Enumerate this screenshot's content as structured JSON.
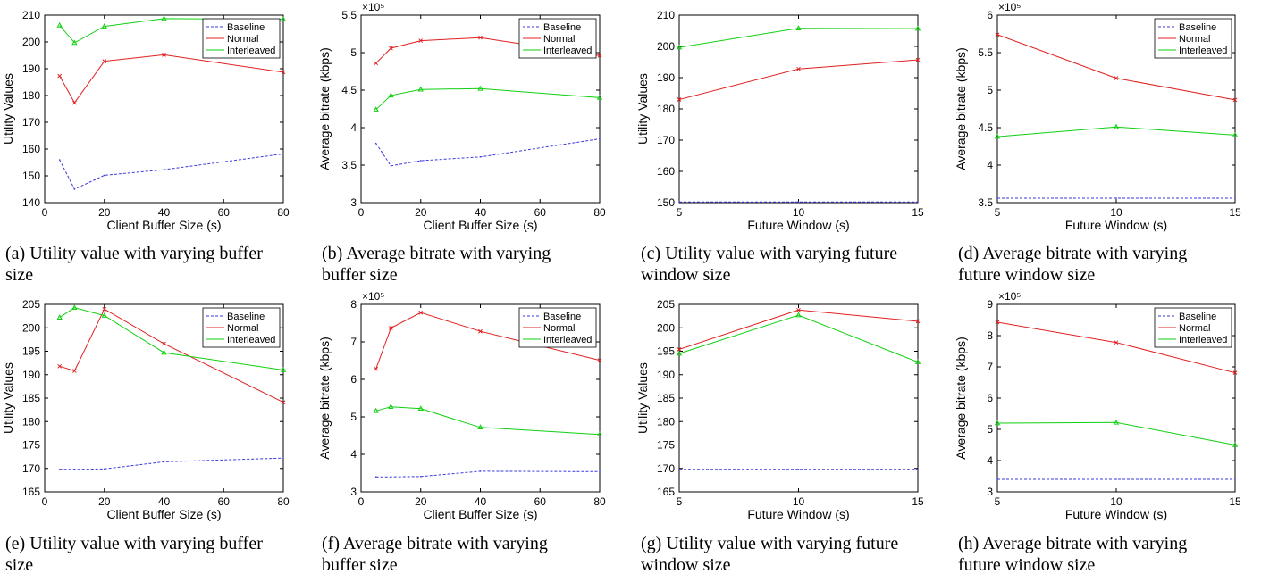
{
  "chart_data": [
    {
      "id": "a",
      "type": "line",
      "xlabel": "Client Buffer Size (s)",
      "ylabel": "Utility Values",
      "xlim": [
        0,
        80
      ],
      "ylim": [
        140,
        210
      ],
      "xticks": [
        0,
        20,
        40,
        60,
        80
      ],
      "yticks": [
        140,
        150,
        160,
        170,
        180,
        190,
        200,
        210
      ],
      "exponent": "",
      "x": [
        5,
        10,
        20,
        40,
        80
      ],
      "series": [
        {
          "name": "Baseline",
          "values": [
            156,
            145,
            150.2,
            152.3,
            158.2
          ]
        },
        {
          "name": "Normal",
          "values": [
            187.3,
            177.3,
            192.8,
            195.2,
            188.7
          ]
        },
        {
          "name": "Interleaved",
          "values": [
            206.2,
            199.7,
            205.8,
            208.7,
            208.4
          ]
        }
      ],
      "caption": [
        "(a) Utility value with varying buffer",
        "size"
      ],
      "legend_position": "top-right"
    },
    {
      "id": "b",
      "type": "line",
      "xlabel": "Client Buffer Size (s)",
      "ylabel": "Average bitrate (kbps)",
      "xlim": [
        0,
        80
      ],
      "ylim": [
        3,
        5.5
      ],
      "xticks": [
        0,
        20,
        40,
        60,
        80
      ],
      "yticks": [
        3,
        3.5,
        4,
        4.5,
        5,
        5.5
      ],
      "exponent": "×10⁵",
      "x": [
        5,
        10,
        20,
        40,
        80
      ],
      "series": [
        {
          "name": "Baseline",
          "values": [
            3.79,
            3.49,
            3.56,
            3.61,
            3.85
          ]
        },
        {
          "name": "Normal",
          "values": [
            4.86,
            5.06,
            5.16,
            5.2,
            4.96
          ]
        },
        {
          "name": "Interleaved",
          "values": [
            4.24,
            4.43,
            4.51,
            4.52,
            4.4
          ]
        }
      ],
      "caption": [
        "(b) Average bitrate with varying",
        "buffer size"
      ],
      "legend_position": "top-right"
    },
    {
      "id": "c",
      "type": "line",
      "xlabel": "Future Window (s)",
      "ylabel": "Utility Values",
      "xlim": [
        5,
        15
      ],
      "ylim": [
        150,
        210
      ],
      "xticks": [
        5,
        10,
        15
      ],
      "yticks": [
        150,
        160,
        170,
        180,
        190,
        200,
        210
      ],
      "exponent": "",
      "x": [
        5,
        10,
        15
      ],
      "series": [
        {
          "name": "Baseline",
          "values": [
            150.2,
            150.2,
            150.2
          ]
        },
        {
          "name": "Normal",
          "values": [
            183,
            192.8,
            195.7
          ]
        },
        {
          "name": "Interleaved",
          "values": [
            199.7,
            205.8,
            205.7
          ]
        }
      ],
      "caption": [
        "(c) Utility value with varying future",
        "window size"
      ],
      "legend_position": "none"
    },
    {
      "id": "d",
      "type": "line",
      "xlabel": "Future Window (s)",
      "ylabel": "Average bitrate (kbps)",
      "xlim": [
        5,
        15
      ],
      "ylim": [
        3.5,
        6
      ],
      "xticks": [
        5,
        10,
        15
      ],
      "yticks": [
        3.5,
        4,
        4.5,
        5,
        5.5,
        6
      ],
      "exponent": "×10⁵",
      "x": [
        5,
        10,
        15
      ],
      "series": [
        {
          "name": "Baseline",
          "values": [
            3.56,
            3.56,
            3.56
          ]
        },
        {
          "name": "Normal",
          "values": [
            5.74,
            5.16,
            4.87
          ]
        },
        {
          "name": "Interleaved",
          "values": [
            4.38,
            4.51,
            4.4
          ]
        }
      ],
      "caption": [
        "(d) Average bitrate with varying",
        "future window size"
      ],
      "legend_position": "top-right"
    },
    {
      "id": "e",
      "type": "line",
      "xlabel": "Client Buffer Size (s)",
      "ylabel": "Utility Values",
      "xlim": [
        0,
        80
      ],
      "ylim": [
        165,
        205
      ],
      "xticks": [
        0,
        20,
        40,
        60,
        80
      ],
      "yticks": [
        165,
        170,
        175,
        180,
        185,
        190,
        195,
        200,
        205
      ],
      "exponent": "",
      "x": [
        5,
        10,
        20,
        40,
        80
      ],
      "series": [
        {
          "name": "Baseline",
          "values": [
            169.8,
            169.8,
            169.9,
            171.4,
            172.2
          ]
        },
        {
          "name": "Normal",
          "values": [
            191.8,
            190.8,
            204,
            196.6,
            184.1
          ]
        },
        {
          "name": "Interleaved",
          "values": [
            202.2,
            204.3,
            202.6,
            194.7,
            191
          ]
        }
      ],
      "caption": [
        "(e) Utility value with varying buffer",
        "size"
      ],
      "legend_position": "top-right"
    },
    {
      "id": "f",
      "type": "line",
      "xlabel": "Client Buffer Size (s)",
      "ylabel": "Average bitrate (kbps)",
      "xlim": [
        0,
        80
      ],
      "ylim": [
        3,
        8
      ],
      "xticks": [
        0,
        20,
        40,
        60,
        80
      ],
      "yticks": [
        3,
        4,
        5,
        6,
        7,
        8
      ],
      "exponent": "×10⁵",
      "x": [
        5,
        10,
        20,
        40,
        80
      ],
      "series": [
        {
          "name": "Baseline",
          "values": [
            3.4,
            3.4,
            3.41,
            3.55,
            3.54
          ]
        },
        {
          "name": "Normal",
          "values": [
            6.28,
            7.37,
            7.78,
            7.28,
            6.51
          ]
        },
        {
          "name": "Interleaved",
          "values": [
            5.16,
            5.27,
            5.22,
            4.72,
            4.53
          ]
        }
      ],
      "caption": [
        "(f) Average bitrate with varying",
        "buffer size"
      ],
      "legend_position": "top-right"
    },
    {
      "id": "g",
      "type": "line",
      "xlabel": "Future Window (s)",
      "ylabel": "Utility Values",
      "xlim": [
        5,
        15
      ],
      "ylim": [
        165,
        205
      ],
      "xticks": [
        5,
        10,
        15
      ],
      "yticks": [
        165,
        170,
        175,
        180,
        185,
        190,
        195,
        200,
        205
      ],
      "exponent": "",
      "x": [
        5,
        10,
        15
      ],
      "series": [
        {
          "name": "Baseline",
          "values": [
            169.8,
            169.8,
            169.8
          ]
        },
        {
          "name": "Normal",
          "values": [
            195.4,
            203.8,
            201.4
          ]
        },
        {
          "name": "Interleaved",
          "values": [
            194.5,
            202.7,
            192.7
          ]
        }
      ],
      "caption": [
        "(g) Utility value with varying future",
        "window size"
      ],
      "legend_position": "none"
    },
    {
      "id": "h",
      "type": "line",
      "xlabel": "Future Window (s)",
      "ylabel": "Average bitrate (kbps)",
      "xlim": [
        5,
        15
      ],
      "ylim": [
        3,
        9
      ],
      "xticks": [
        5,
        10,
        15
      ],
      "yticks": [
        3,
        4,
        5,
        6,
        7,
        8,
        9
      ],
      "exponent": "×10⁵",
      "x": [
        5,
        10,
        15
      ],
      "series": [
        {
          "name": "Baseline",
          "values": [
            3.4,
            3.4,
            3.4
          ]
        },
        {
          "name": "Normal",
          "values": [
            8.43,
            7.78,
            6.81
          ]
        },
        {
          "name": "Interleaved",
          "values": [
            5.2,
            5.22,
            4.5
          ]
        }
      ],
      "caption": [
        "(h) Average bitrate with varying",
        "future window size"
      ],
      "legend_position": "top-right"
    }
  ],
  "series_colors": {
    "Baseline": "#3a3adf",
    "Normal": "#e02020",
    "Interleaved": "#10d010"
  },
  "series_styles": {
    "Baseline": "dashed",
    "Normal": "solid-x-marker",
    "Interleaved": "solid-triangle-marker"
  }
}
